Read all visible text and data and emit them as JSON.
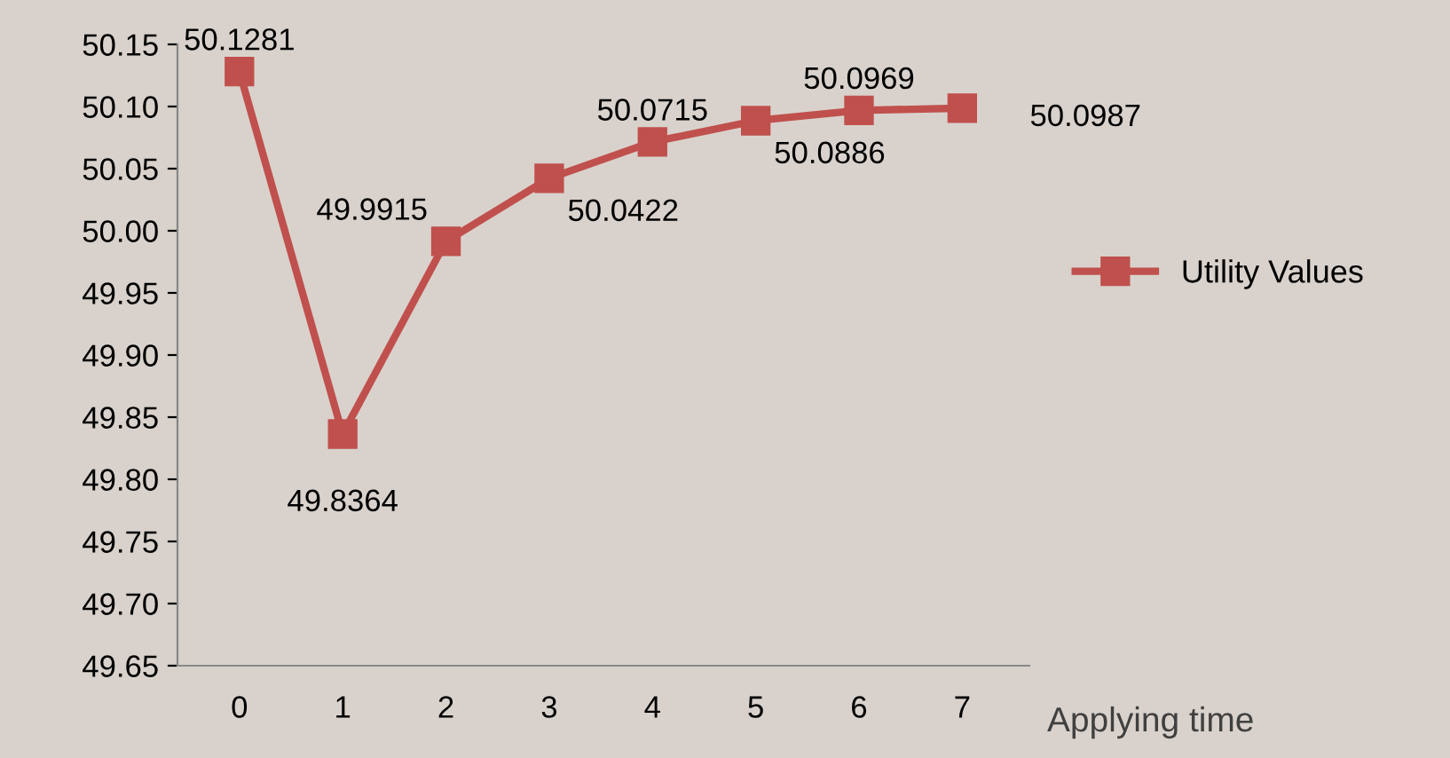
{
  "chart_data": {
    "type": "line",
    "xlabel": "Applying time",
    "categories": [
      "0",
      "1",
      "2",
      "3",
      "4",
      "5",
      "6",
      "7"
    ],
    "series": [
      {
        "name": "Utility Values",
        "color": "#c0504d",
        "values": [
          50.1281,
          49.8364,
          49.9915,
          50.0422,
          50.0715,
          50.0886,
          50.0969,
          50.0987
        ]
      }
    ],
    "ylim": [
      49.65,
      50.15
    ],
    "yticks": [
      49.65,
      {
        "value": 49.7,
        "label": "49.70"
      },
      49.75,
      {
        "value": 49.8,
        "label": "49.80"
      },
      49.85,
      {
        "value": 49.9,
        "label": "49.90"
      },
      49.95,
      {
        "value": 50.0,
        "label": "50.00"
      },
      50.05,
      {
        "value": 50.1,
        "label": "50.10"
      },
      50.15
    ],
    "data_labels": true,
    "marker": "square",
    "line_style": "solid",
    "legend": "right",
    "grid": false
  }
}
